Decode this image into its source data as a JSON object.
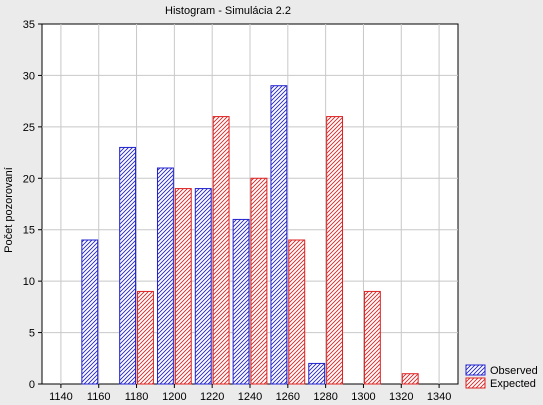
{
  "chart_data": {
    "type": "bar",
    "title": "Histogram - Simulácia 2.2",
    "xlabel": "",
    "ylabel": "Počet pozorovaní",
    "x_ticks": [
      "1140",
      "1160",
      "1180",
      "1200",
      "1220",
      "1240",
      "1260",
      "1280",
      "1300",
      "1320",
      "1340"
    ],
    "y_ticks": [
      "0",
      "5",
      "10",
      "15",
      "20",
      "25",
      "30",
      "35"
    ],
    "xlim": [
      1130,
      1350
    ],
    "ylim": [
      0,
      35
    ],
    "grid": true,
    "legend_position": "bottom-right outside plot",
    "bin_width": 20,
    "series": [
      {
        "name": "Observed",
        "color": "#2222cc",
        "points": [
          {
            "x": 1160,
            "y": 14
          },
          {
            "x": 1180,
            "y": 23
          },
          {
            "x": 1200,
            "y": 21
          },
          {
            "x": 1220,
            "y": 19
          },
          {
            "x": 1240,
            "y": 16
          },
          {
            "x": 1260,
            "y": 29
          },
          {
            "x": 1280,
            "y": 2
          }
        ]
      },
      {
        "name": "Expected",
        "color": "#dd2222",
        "points": [
          {
            "x": 1180,
            "y": 9
          },
          {
            "x": 1200,
            "y": 19
          },
          {
            "x": 1220,
            "y": 26
          },
          {
            "x": 1240,
            "y": 20
          },
          {
            "x": 1260,
            "y": 14
          },
          {
            "x": 1280,
            "y": 26
          },
          {
            "x": 1300,
            "y": 9
          },
          {
            "x": 1320,
            "y": 1
          }
        ]
      }
    ]
  }
}
